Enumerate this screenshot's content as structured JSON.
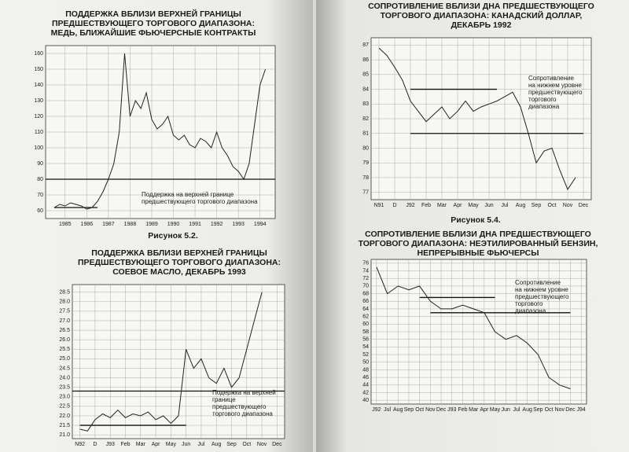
{
  "captions": [
    "Рисунок 5.2.",
    "Рисунок 5.4."
  ],
  "chart_data": [
    {
      "type": "line",
      "title": [
        "ПОДДЕРЖКА ВБЛИЗИ ВЕРХНЕЙ ГРАНИЦЫ",
        "ПРЕДШЕСТВУЮЩЕГО ТОРГОВОГО ДИАПАЗОНА:",
        "МЕДЬ, БЛИЖАЙШИЕ ФЬЮЧЕРСНЫЕ КОНТРАКТЫ"
      ],
      "x": [
        1985,
        1985.25,
        1985.5,
        1985.75,
        1986,
        1986.25,
        1986.5,
        1986.75,
        1987,
        1987.25,
        1987.5,
        1987.75,
        1988,
        1988.25,
        1988.5,
        1988.75,
        1989,
        1989.25,
        1989.5,
        1989.75,
        1990,
        1990.25,
        1990.5,
        1990.75,
        1991,
        1991.25,
        1991.5,
        1991.75,
        1992,
        1992.25,
        1992.5,
        1992.75,
        1993,
        1993.25,
        1993.5,
        1993.75,
        1994,
        1994.25,
        1994.5,
        1994.75
      ],
      "values": [
        62,
        64,
        63,
        65,
        64,
        63,
        61,
        62,
        66,
        72,
        80,
        90,
        110,
        160,
        120,
        130,
        125,
        135,
        118,
        112,
        115,
        120,
        108,
        105,
        108,
        102,
        100,
        106,
        104,
        100,
        110,
        100,
        95,
        88,
        85,
        80,
        90,
        115,
        140,
        150
      ],
      "color": "#222222",
      "xlim": [
        1984.6,
        1995.2
      ],
      "ylim": [
        55,
        165
      ],
      "xticks": [
        {
          "value": 1985.5,
          "label": "1985"
        },
        {
          "value": 1986.5,
          "label": "1986"
        },
        {
          "value": 1987.5,
          "label": "1987"
        },
        {
          "value": 1988.5,
          "label": "1988"
        },
        {
          "value": 1989.5,
          "label": "1989"
        },
        {
          "value": 1990.5,
          "label": "1990"
        },
        {
          "value": 1991.5,
          "label": "1991"
        },
        {
          "value": 1992.5,
          "label": "1992"
        },
        {
          "value": 1993.5,
          "label": "1993"
        },
        {
          "value": 1994.5,
          "label": "1994"
        }
      ],
      "yticks": [
        60,
        70,
        80,
        90,
        100,
        110,
        120,
        130,
        140,
        150,
        160
      ],
      "grid": true,
      "levels": [
        {
          "value": 80,
          "x": [
            1984.6,
            1995.2
          ]
        },
        {
          "value": 62,
          "x": [
            1985,
            1987
          ]
        }
      ],
      "annotation": [
        "Поддержка на верхней границе",
        "предшествующего торгового диапазона"
      ]
    },
    {
      "type": "line",
      "title": [
        "ПОДДЕРЖКА ВБЛИЗИ ВЕРХНЕЙ ГРАНИЦЫ",
        "ПРЕДШЕСТВУЮЩЕГО ТОРГОВОГО ДИАПАЗОНА:",
        "СОЕВОЕ МАСЛО, ДЕКАБРЬ 1993"
      ],
      "x": [
        0,
        0.5,
        1,
        1.5,
        2,
        2.5,
        3,
        3.5,
        4,
        4.5,
        5,
        5.5,
        6,
        6.5,
        7,
        7.5,
        8,
        8.5,
        9,
        9.5,
        10,
        10.5,
        11,
        11.5,
        12
      ],
      "values": [
        21.3,
        21.2,
        21.8,
        22.1,
        21.9,
        22.3,
        21.9,
        22.1,
        22,
        22.2,
        21.8,
        22,
        21.6,
        22,
        25.5,
        24.5,
        25,
        24,
        23.7,
        24.5,
        23.5,
        24,
        25.5,
        27,
        28.5
      ],
      "color": "#222222",
      "xlim": [
        -0.5,
        13.5
      ],
      "ylim": [
        20.8,
        28.9
      ],
      "xticks": [
        {
          "value": 0,
          "label": "N92"
        },
        {
          "value": 1,
          "label": "D"
        },
        {
          "value": 2,
          "label": "J93"
        },
        {
          "value": 3,
          "label": "Feb"
        },
        {
          "value": 4,
          "label": "Mar"
        },
        {
          "value": 5,
          "label": "Apr"
        },
        {
          "value": 6,
          "label": "May"
        },
        {
          "value": 7,
          "label": "Jun"
        },
        {
          "value": 8,
          "label": "Jul"
        },
        {
          "value": 9,
          "label": "Aug"
        },
        {
          "value": 10,
          "label": "Sep"
        },
        {
          "value": 11,
          "label": "Oct"
        },
        {
          "value": 12,
          "label": "Nov"
        },
        {
          "value": 13,
          "label": "Dec"
        }
      ],
      "yticks": [
        {
          "value": 21,
          "label": "21.0"
        },
        21.5,
        {
          "value": 22,
          "label": "22.0"
        },
        22.5,
        {
          "value": 23,
          "label": "23.0"
        },
        23.5,
        {
          "value": 24,
          "label": "24.0"
        },
        24.5,
        {
          "value": 25,
          "label": "25.0"
        },
        25.5,
        {
          "value": 26,
          "label": "26.0"
        },
        26.5,
        {
          "value": 27,
          "label": "27.0"
        },
        27.5,
        {
          "value": 28,
          "label": "28.0"
        },
        28.5
      ],
      "grid": true,
      "levels": [
        {
          "value": 23.3,
          "x": [
            -0.5,
            13.5
          ]
        },
        {
          "value": 21.5,
          "x": [
            0,
            7
          ]
        }
      ],
      "annotation": [
        "Подержка на верхней",
        "границе",
        "предшествующего",
        "торгового диапазона"
      ]
    },
    {
      "type": "line",
      "title": [
        "СОПРОТИВЛЕНИЕ ВБЛИЗИ ДНА ПРЕДШЕСТВУЮЩЕГО",
        "ТОРГОВОГО ДИАПАЗОНА: КАНАДСКИЙ ДОЛЛАР,",
        "ДЕКАБРЬ 1992"
      ],
      "x": [
        0,
        0.5,
        1,
        1.5,
        2,
        2.5,
        3,
        3.5,
        4,
        4.5,
        5,
        5.5,
        6,
        6.5,
        7,
        7.5,
        8,
        8.5,
        9,
        9.5,
        10,
        10.5,
        11,
        11.5,
        12,
        12.5
      ],
      "values": [
        86.8,
        86.3,
        85.5,
        84.6,
        83.2,
        82.5,
        81.8,
        82.3,
        82.8,
        82,
        82.5,
        83.2,
        82.5,
        82.8,
        83,
        83.2,
        83.5,
        83.8,
        82.8,
        81,
        79,
        79.8,
        80,
        78.5,
        77.2,
        78
      ],
      "color": "#222222",
      "xlim": [
        -0.5,
        13.5
      ],
      "ylim": [
        76.5,
        87.5
      ],
      "xticks": [
        {
          "value": 0,
          "label": "N91"
        },
        {
          "value": 1,
          "label": "D"
        },
        {
          "value": 2,
          "label": "J92"
        },
        {
          "value": 3,
          "label": "Feb"
        },
        {
          "value": 4,
          "label": "Mar"
        },
        {
          "value": 5,
          "label": "Apr"
        },
        {
          "value": 6,
          "label": "May"
        },
        {
          "value": 7,
          "label": "Jun"
        },
        {
          "value": 8,
          "label": "Jul"
        },
        {
          "value": 9,
          "label": "Aug"
        },
        {
          "value": 10,
          "label": "Sep"
        },
        {
          "value": 11,
          "label": "Oct"
        },
        {
          "value": 12,
          "label": "Nov"
        },
        {
          "value": 13,
          "label": "Dec"
        }
      ],
      "yticks": [
        77,
        78,
        79,
        80,
        81,
        82,
        83,
        84,
        85,
        86,
        87
      ],
      "grid": true,
      "levels": [
        {
          "value": 84,
          "x": [
            2,
            7.5
          ]
        },
        {
          "value": 81,
          "x": [
            2,
            13
          ]
        }
      ],
      "annotation": [
        "Сопротивление",
        "на нижнем уровне",
        "предшествующего",
        "торгового",
        "диапазона"
      ]
    },
    {
      "type": "line",
      "title": [
        "СОПРОТИВЛЕНИЕ ВБЛИЗИ ДНА ПРЕДШЕСТВУЮЩЕГО",
        "ТОРГОВОГО ДИАПАЗОНА: НЕЭТИЛИРОВАННЫЙ БЕНЗИН,",
        "НЕПРЕРЫВНЫЕ ФЬЮЧЕРСЫ"
      ],
      "x": [
        0,
        1,
        2,
        3,
        4,
        5,
        6,
        7,
        8,
        9,
        10,
        11,
        12,
        13,
        14,
        15,
        16,
        17,
        18
      ],
      "values": [
        75,
        68,
        70,
        69,
        70,
        66,
        64,
        64,
        65,
        64,
        63,
        58,
        56,
        57,
        55,
        52,
        46,
        44,
        43
      ],
      "color": "#222222",
      "xlim": [
        -0.5,
        19.5
      ],
      "ylim": [
        39,
        77
      ],
      "xticks": [
        {
          "value": 0,
          "label": "J92"
        },
        {
          "value": 1,
          "label": "Jul"
        },
        {
          "value": 2,
          "label": "Aug"
        },
        {
          "value": 3,
          "label": "Sep"
        },
        {
          "value": 4,
          "label": "Oct"
        },
        {
          "value": 5,
          "label": "Nov"
        },
        {
          "value": 6,
          "label": "Dec"
        },
        {
          "value": 7,
          "label": "J93"
        },
        {
          "value": 8,
          "label": "Feb"
        },
        {
          "value": 9,
          "label": "Mar"
        },
        {
          "value": 10,
          "label": "Apr"
        },
        {
          "value": 11,
          "label": "May"
        },
        {
          "value": 12,
          "label": "Jun"
        },
        {
          "value": 13,
          "label": "Jul"
        },
        {
          "value": 14,
          "label": "Aug"
        },
        {
          "value": 15,
          "label": "Sep"
        },
        {
          "value": 16,
          "label": "Oct"
        },
        {
          "value": 17,
          "label": "Nov"
        },
        {
          "value": 18,
          "label": "Dec"
        },
        {
          "value": 19,
          "label": "J94"
        }
      ],
      "yticks": [
        40,
        42,
        44,
        46,
        48,
        50,
        52,
        54,
        56,
        58,
        60,
        62,
        64,
        66,
        68,
        70,
        72,
        74,
        76
      ],
      "grid": true,
      "levels": [
        {
          "value": 67,
          "x": [
            4,
            11
          ]
        },
        {
          "value": 63,
          "x": [
            5,
            18
          ]
        }
      ],
      "annotation": [
        "Сопротивление",
        "на нижнем уровне",
        "предшествующего",
        "торгового",
        "диапазона"
      ]
    }
  ]
}
